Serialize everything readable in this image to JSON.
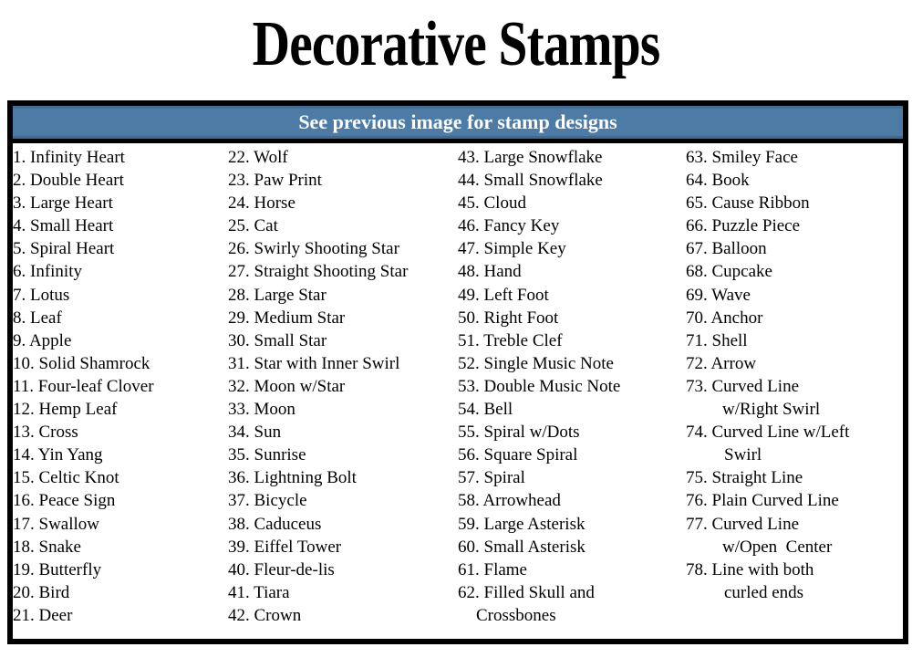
{
  "title": "Decorative Stamps",
  "header": {
    "note": "See previous image for stamp designs",
    "background": "#4d7ba6",
    "text_color": "#ffffff"
  },
  "panel": {
    "border_color": "#000000"
  },
  "columns": [
    {
      "items": [
        {
          "num": "1.",
          "text": "Infinity Heart"
        },
        {
          "num": "2.",
          "text": "Double Heart"
        },
        {
          "num": "3.",
          "text": "Large Heart"
        },
        {
          "num": "4.",
          "text": "Small Heart"
        },
        {
          "num": "5.",
          "text": "Spiral Heart"
        },
        {
          "num": "6.",
          "text": "Infinity"
        },
        {
          "num": "7.",
          "text": "Lotus"
        },
        {
          "num": "8.",
          "text": "Leaf"
        },
        {
          "num": "9.",
          "text": "Apple"
        },
        {
          "num": "10.",
          "text": "Solid Shamrock"
        },
        {
          "num": "11.",
          "text": "Four-leaf Clover"
        },
        {
          "num": "12.",
          "text": "Hemp Leaf"
        },
        {
          "num": "13.",
          "text": "Cross"
        },
        {
          "num": "14.",
          "text": "Yin Yang"
        },
        {
          "num": "15.",
          "text": "Celtic Knot"
        },
        {
          "num": "16.",
          "text": "Peace Sign"
        },
        {
          "num": "17.",
          "text": "Swallow"
        },
        {
          "num": "18.",
          "text": "Snake"
        },
        {
          "num": "19.",
          "text": "Butterfly"
        },
        {
          "num": "20.",
          "text": "Bird"
        },
        {
          "num": "21.",
          "text": "Deer"
        }
      ]
    },
    {
      "items": [
        {
          "num": "22.",
          "text": "Wolf"
        },
        {
          "num": "23.",
          "text": "Paw Print"
        },
        {
          "num": "24.",
          "text": "Horse"
        },
        {
          "num": "25.",
          "text": "Cat"
        },
        {
          "num": "26.",
          "text": "Swirly Shooting Star"
        },
        {
          "num": "27.",
          "text": "Straight Shooting Star"
        },
        {
          "num": "28.",
          "text": "Large Star"
        },
        {
          "num": "29.",
          "text": "Medium Star"
        },
        {
          "num": "30.",
          "text": "Small Star"
        },
        {
          "num": "31.",
          "text": "Star with Inner Swirl"
        },
        {
          "num": "32.",
          "text": "Moon w/Star"
        },
        {
          "num": "33.",
          "text": "Moon"
        },
        {
          "num": "34.",
          "text": "Sun"
        },
        {
          "num": "35.",
          "text": "Sunrise"
        },
        {
          "num": "36.",
          "text": "Lightning Bolt"
        },
        {
          "num": "37.",
          "text": "Bicycle"
        },
        {
          "num": "38.",
          "text": "Caduceus"
        },
        {
          "num": "39.",
          "text": "Eiffel Tower"
        },
        {
          "num": "40.",
          "text": "Fleur-de-lis"
        },
        {
          "num": "41.",
          "text": "Tiara"
        },
        {
          "num": "42.",
          "text": "Crown"
        }
      ]
    },
    {
      "items": [
        {
          "num": "43.",
          "text": "Large Snowflake"
        },
        {
          "num": "44.",
          "text": "Small Snowflake"
        },
        {
          "num": "45.",
          "text": "Cloud"
        },
        {
          "num": "46.",
          "text": "Fancy Key"
        },
        {
          "num": "47.",
          "text": "Simple Key"
        },
        {
          "num": "48.",
          "text": "Hand"
        },
        {
          "num": "49.",
          "text": "Left Foot"
        },
        {
          "num": "50.",
          "text": "Right Foot"
        },
        {
          "num": "51.",
          "text": "Treble Clef"
        },
        {
          "num": "52.",
          "text": "Single Music Note"
        },
        {
          "num": "53.",
          "text": "Double Music Note"
        },
        {
          "num": "54.",
          "text": "Bell"
        },
        {
          "num": "55.",
          "text": "Spiral w/Dots"
        },
        {
          "num": "56.",
          "text": "Square Spiral"
        },
        {
          "num": "57.",
          "text": "Spiral"
        },
        {
          "num": "58.",
          "text": "Arrowhead"
        },
        {
          "num": "59.",
          "text": "Large Asterisk"
        },
        {
          "num": "60.",
          "text": "Small Asterisk"
        },
        {
          "num": "61.",
          "text": "Flame"
        },
        {
          "num": "62.",
          "text": "Filled Skull and",
          "text2": "Crossbones",
          "indent2": 20
        }
      ]
    },
    {
      "items": [
        {
          "num": "63.",
          "text": "Smiley Face"
        },
        {
          "num": "64.",
          "text": "Book"
        },
        {
          "num": "65.",
          "text": "Cause Ribbon"
        },
        {
          "num": "66.",
          "text": "Puzzle Piece"
        },
        {
          "num": "67.",
          "text": "Balloon"
        },
        {
          "num": "68.",
          "text": "Cupcake"
        },
        {
          "num": "69.",
          "text": "Wave"
        },
        {
          "num": "70.",
          "text": "Anchor"
        },
        {
          "num": "71.",
          "text": "Shell"
        },
        {
          "num": "72.",
          "text": "Arrow"
        },
        {
          "num": "73.",
          "text": "Curved Line",
          "text2": "w/Right Swirl",
          "indent2": 40
        },
        {
          "num": "74.",
          "text": "Curved Line w/Left",
          "text2": "Swirl",
          "indent2": 42
        },
        {
          "num": "75.",
          "text": "Straight Line"
        },
        {
          "num": "76.",
          "text": "Plain Curved Line"
        },
        {
          "num": "77.",
          "text": "Curved Line",
          "text2": "w/Open  Center",
          "indent2": 40
        },
        {
          "num": "78.",
          "text": "Line with both",
          "text2": "curled ends",
          "indent2": 42
        }
      ]
    }
  ]
}
